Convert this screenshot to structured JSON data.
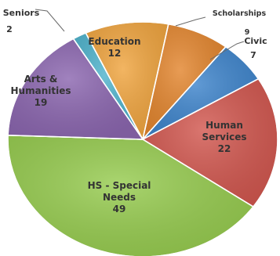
{
  "chart_data": {
    "type": "pie",
    "slices": [
      {
        "category": "Seniors",
        "value": 2,
        "color": "#4fb3cc"
      },
      {
        "category": "Education",
        "value": 12,
        "color": "#f0a540"
      },
      {
        "category": "Scholarships",
        "value": 9,
        "color": "#e3862f"
      },
      {
        "category": "Civic",
        "value": 7,
        "color": "#3f85cc"
      },
      {
        "category": "Human Services",
        "value": 22,
        "color": "#d25850"
      },
      {
        "category": "HS - Special Needs",
        "value": 49,
        "color": "#97cc50"
      },
      {
        "category": "Arts & Humanities",
        "value": 19,
        "color": "#8c67b0"
      }
    ]
  }
}
